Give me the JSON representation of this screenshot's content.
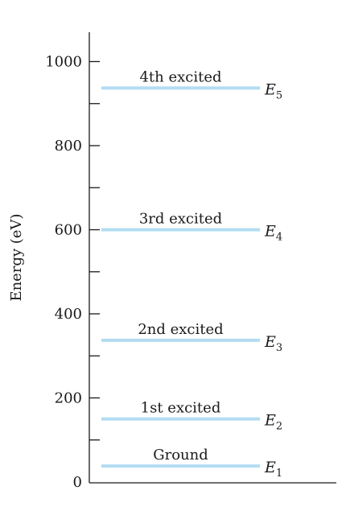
{
  "chart_data": {
    "type": "energy-level-diagram",
    "ylabel": "Energy (eV)",
    "ylim": [
      0,
      1050
    ],
    "y_ticks": [
      {
        "value": 0,
        "label": "0"
      },
      {
        "value": 200,
        "label": "200"
      },
      {
        "value": 400,
        "label": "400"
      },
      {
        "value": 600,
        "label": "600"
      },
      {
        "value": 800,
        "label": "800"
      },
      {
        "value": 1000,
        "label": "1000"
      }
    ],
    "minor_ticks": [
      100,
      300,
      500,
      700,
      900
    ],
    "levels": [
      {
        "name": "Ground",
        "energy": 38,
        "symbol": "E",
        "subscript": "1"
      },
      {
        "name": "1st excited",
        "energy": 150,
        "symbol": "E",
        "subscript": "2"
      },
      {
        "name": "2nd excited",
        "energy": 337,
        "symbol": "E",
        "subscript": "3"
      },
      {
        "name": "3rd excited",
        "energy": 600,
        "symbol": "E",
        "subscript": "4"
      },
      {
        "name": "4th excited",
        "energy": 937,
        "symbol": "E",
        "subscript": "5"
      }
    ],
    "level_color": "#b3dcf2",
    "axis_color": "#1a1a1a"
  }
}
